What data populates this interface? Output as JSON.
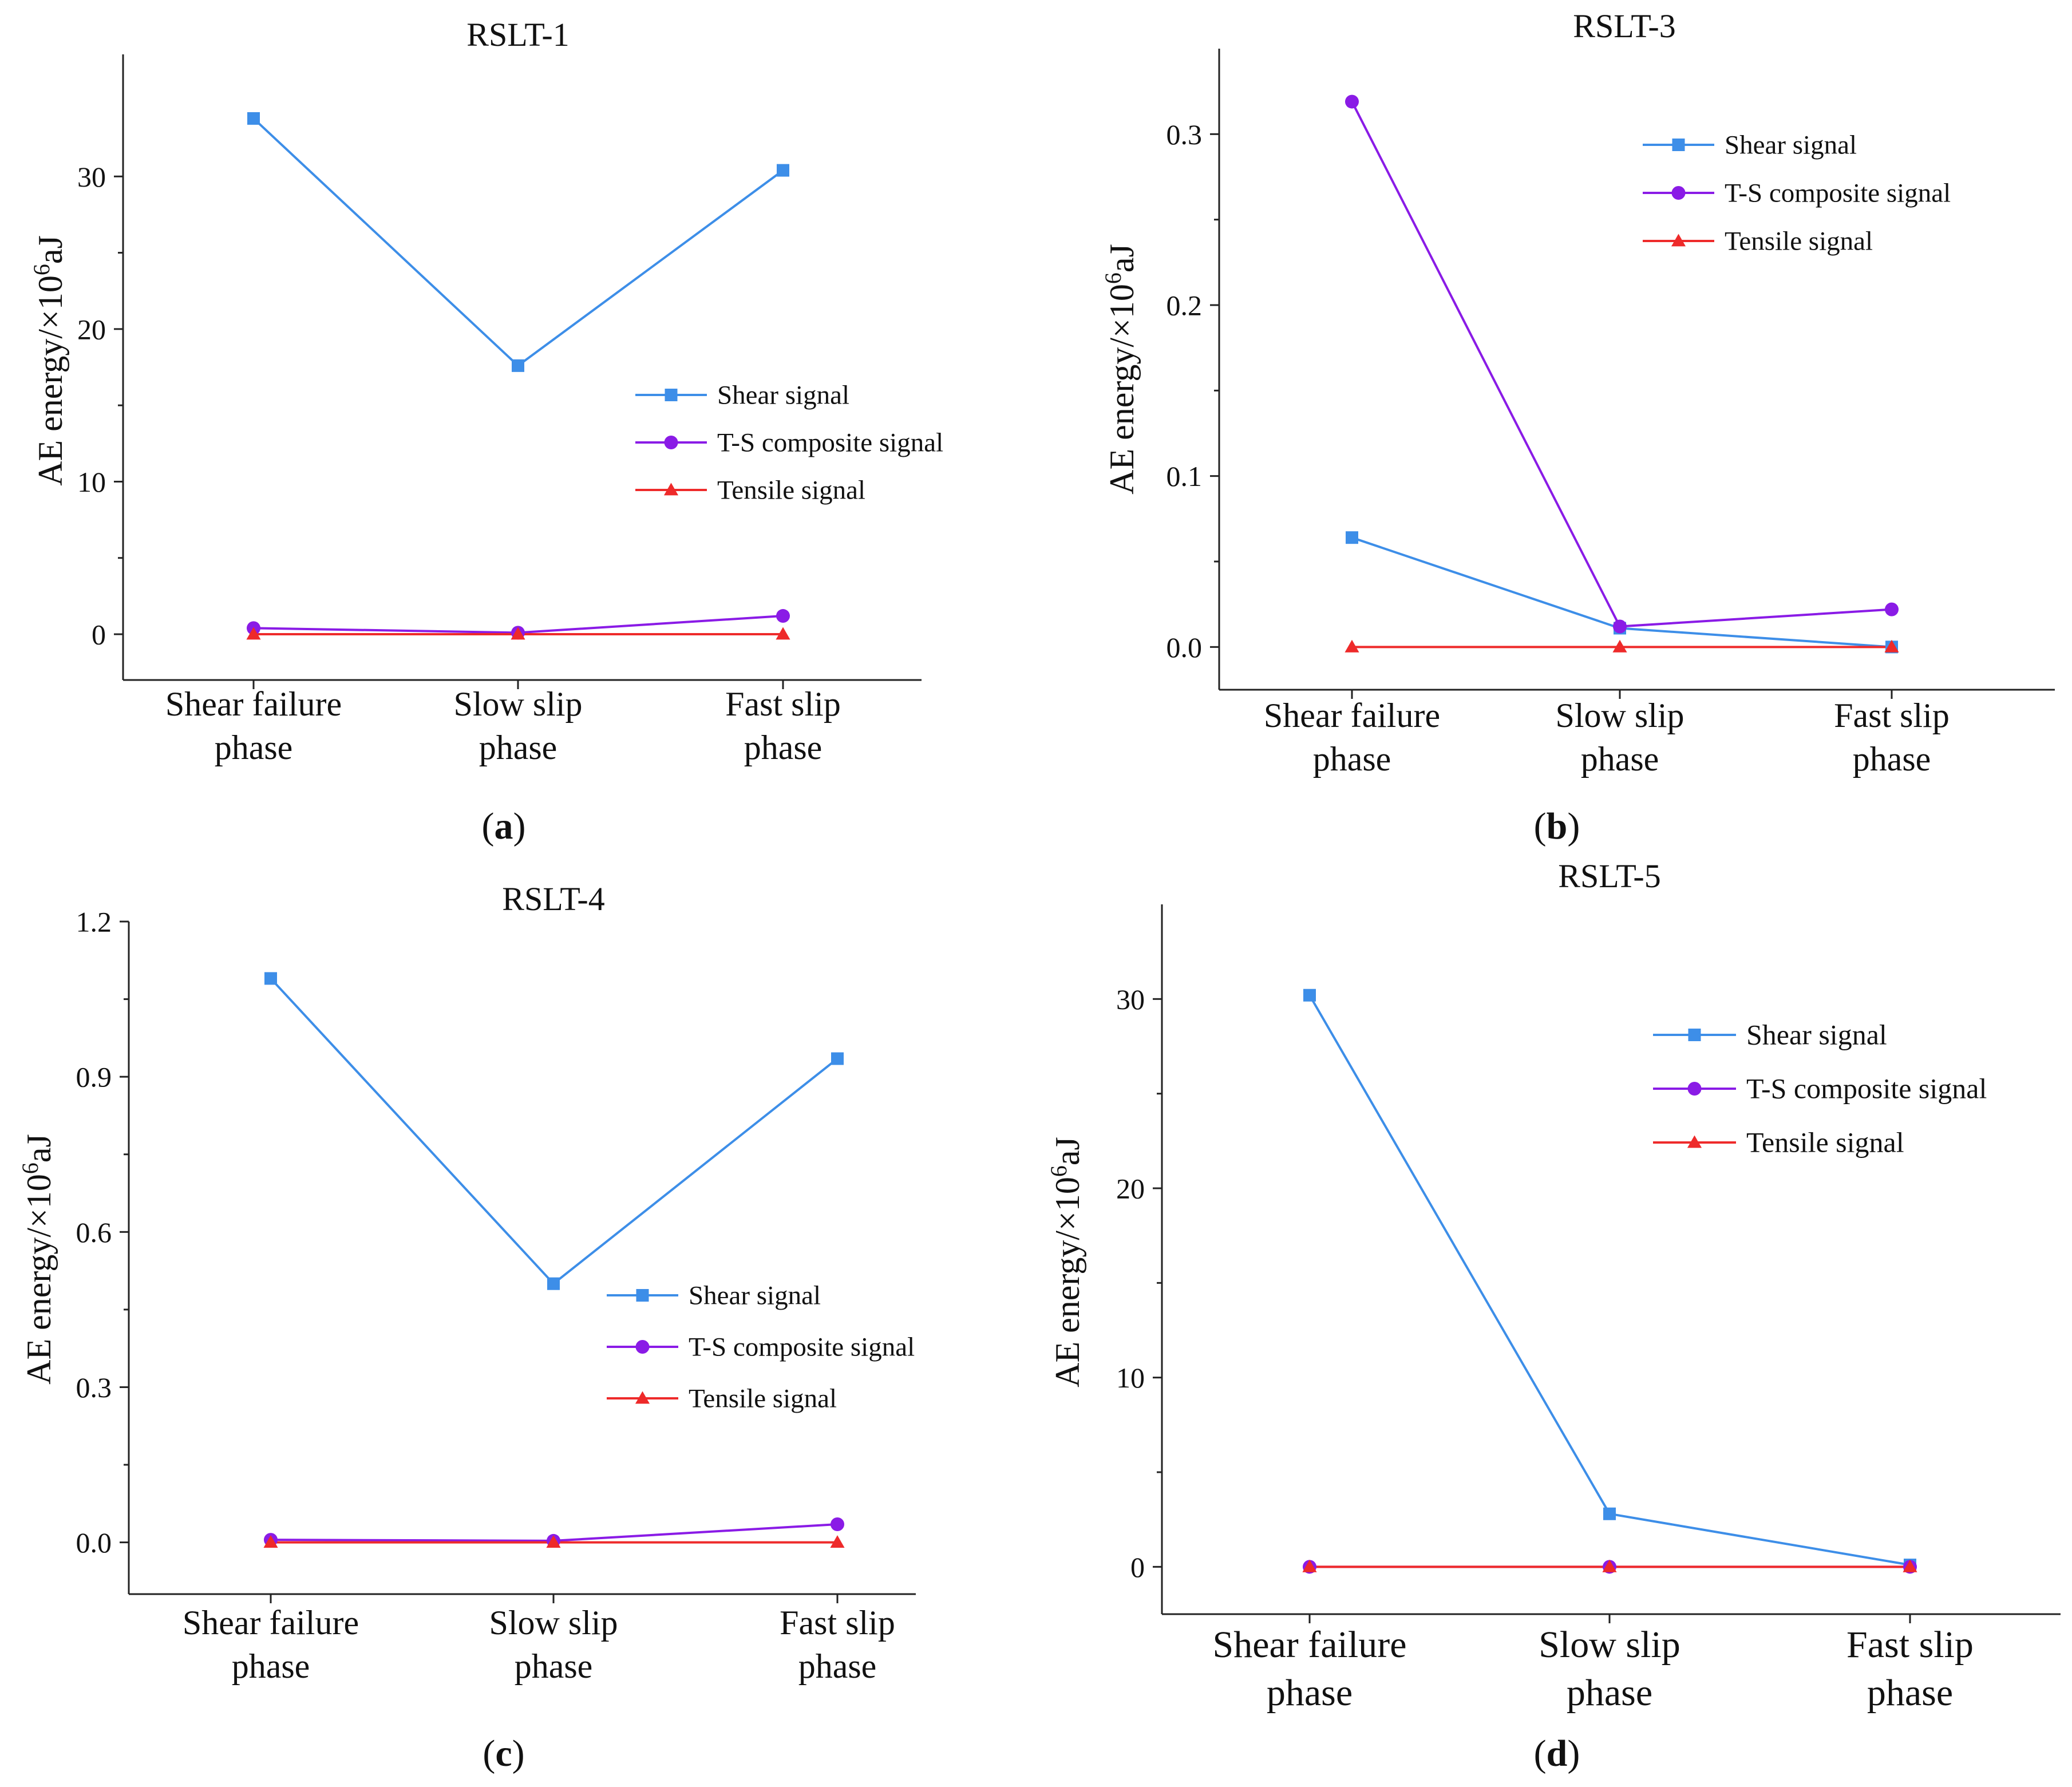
{
  "figure": {
    "panel_labels": [
      "a",
      "b",
      "c",
      "d"
    ]
  },
  "style": {
    "shear_color": "#3d8ee8",
    "ts_color": "#8a1be6",
    "tensile_color": "#ee2a2a",
    "axis_color": "#222222"
  },
  "chart_data": [
    {
      "type": "line",
      "title": "RSLT-1",
      "panel_label": "a",
      "ylabel": "AE energy/×10⁶aJ",
      "xlabel": "",
      "categories": [
        "Shear failure\nphase",
        "Slow slip\nphase",
        "Fast slip\nphase"
      ],
      "ylim": [
        -3,
        38
      ],
      "yticks": [
        0,
        10,
        20,
        30
      ],
      "ytick_labels": [
        "0",
        "10",
        "20",
        "30"
      ],
      "legend_position": "center-right",
      "series": [
        {
          "name": "Shear signal",
          "marker": "square",
          "values": [
            33.8,
            17.6,
            30.4
          ]
        },
        {
          "name": "T-S composite signal",
          "marker": "circle",
          "values": [
            0.4,
            0.1,
            1.2
          ]
        },
        {
          "name": "Tensile signal",
          "marker": "triangle",
          "values": [
            0.0,
            0.0,
            0.0
          ]
        }
      ]
    },
    {
      "type": "line",
      "title": "RSLT-3",
      "panel_label": "b",
      "ylabel": "AE energy/×10⁶aJ",
      "xlabel": "",
      "categories": [
        "Shear failure\nphase",
        "Slow slip\nphase",
        "Fast slip\nphase"
      ],
      "ylim": [
        -0.025,
        0.35
      ],
      "yticks": [
        0,
        0.1,
        0.2,
        0.3
      ],
      "ytick_labels": [
        "0.0",
        "0.1",
        "0.2",
        "0.3"
      ],
      "legend_position": "top-right",
      "series": [
        {
          "name": "Shear signal",
          "marker": "square",
          "values": [
            0.064,
            0.011,
            0.0
          ]
        },
        {
          "name": "T-S composite signal",
          "marker": "circle",
          "values": [
            0.319,
            0.012,
            0.022
          ]
        },
        {
          "name": "Tensile signal",
          "marker": "triangle",
          "values": [
            0.0,
            0.0,
            0.0
          ]
        }
      ]
    },
    {
      "type": "line",
      "title": "RSLT-4",
      "panel_label": "c",
      "ylabel": "AE energy/×10⁶aJ",
      "xlabel": "",
      "categories": [
        "Shear failure\nphase",
        "Slow slip\nphase",
        "Fast slip\nphase"
      ],
      "ylim": [
        -0.1,
        1.2
      ],
      "yticks": [
        0,
        0.3,
        0.6,
        0.9,
        1.2
      ],
      "ytick_labels": [
        "0.0",
        "0.3",
        "0.6",
        "0.9",
        "1.2"
      ],
      "legend_position": "center-right",
      "series": [
        {
          "name": "Shear signal",
          "marker": "square",
          "values": [
            1.09,
            0.5,
            0.935
          ]
        },
        {
          "name": "T-S composite signal",
          "marker": "circle",
          "values": [
            0.005,
            0.003,
            0.035
          ]
        },
        {
          "name": "Tensile signal",
          "marker": "triangle",
          "values": [
            0.0,
            0.0,
            0.0
          ]
        }
      ]
    },
    {
      "type": "line",
      "title": "RSLT-5",
      "panel_label": "d",
      "ylabel": "AE energy/×10⁶aJ",
      "xlabel": "",
      "categories": [
        "Shear failure\nphase",
        "Slow slip\nphase",
        "Fast slip\nphase"
      ],
      "ylim": [
        -2.5,
        35
      ],
      "yticks": [
        0,
        10,
        20,
        30
      ],
      "ytick_labels": [
        "0",
        "10",
        "20",
        "30"
      ],
      "legend_position": "top-right",
      "series": [
        {
          "name": "Shear signal",
          "marker": "square",
          "values": [
            30.2,
            2.8,
            0.1
          ]
        },
        {
          "name": "T-S composite signal",
          "marker": "circle",
          "values": [
            0.0,
            0.0,
            0.0
          ]
        },
        {
          "name": "Tensile signal",
          "marker": "triangle",
          "values": [
            0.0,
            0.0,
            0.0
          ]
        }
      ]
    }
  ]
}
